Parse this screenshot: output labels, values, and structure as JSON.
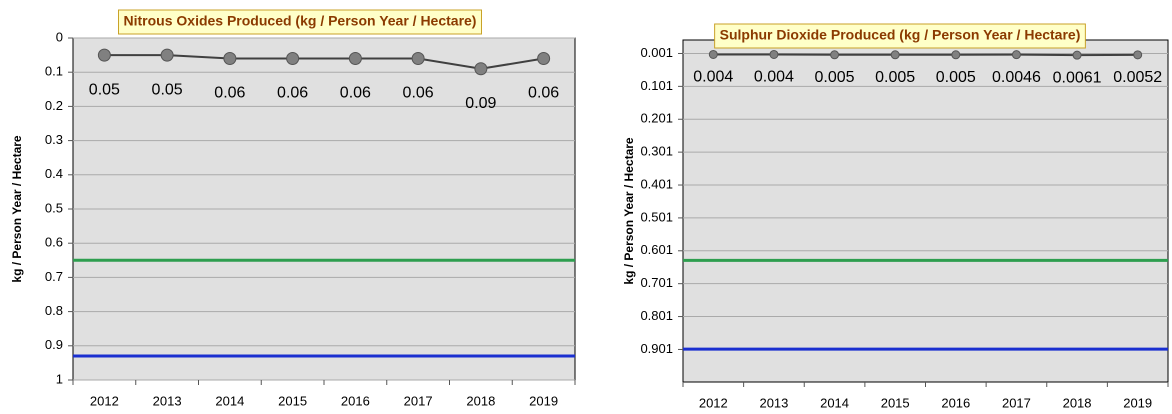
{
  "chart_data": [
    {
      "type": "line",
      "title": "Nitrous Oxides Produced (kg / Person Year / Hectare)",
      "y_label": "kg / Person Year / Hectare",
      "categories": [
        "2012",
        "2013",
        "2014",
        "2015",
        "2016",
        "2017",
        "2018",
        "2019"
      ],
      "values": [
        0.05,
        0.05,
        0.06,
        0.06,
        0.06,
        0.06,
        0.09,
        0.06
      ],
      "color": "#404040",
      "marker_color": "#808080",
      "ylim": [
        0,
        1
      ],
      "y_inverted": true,
      "yticks": [
        0,
        0.1,
        0.2,
        0.3,
        0.4,
        0.5,
        0.6,
        0.7,
        0.8,
        0.9,
        1
      ],
      "grid": true,
      "reference_lines": [
        {
          "value": 0.65,
          "color": "#2e9e4f"
        },
        {
          "value": 0.93,
          "color": "#1a2fd0"
        }
      ]
    },
    {
      "type": "line",
      "title": "Sulphur Dioxide Produced (kg / Person Year / Hectare)",
      "y_label": "kg / Person Year / Hectare",
      "categories": [
        "2012",
        "2013",
        "2014",
        "2015",
        "2016",
        "2017",
        "2018",
        "2019"
      ],
      "values": [
        0.004,
        0.004,
        0.005,
        0.005,
        0.005,
        0.0046,
        0.0061,
        0.0052
      ],
      "color": "#404040",
      "marker_color": "#808080",
      "ylim": [
        -0.04,
        1.0
      ],
      "y_inverted": true,
      "yticks": [
        0.001,
        0.101,
        0.201,
        0.301,
        0.401,
        0.501,
        0.601,
        0.701,
        0.801,
        0.901
      ],
      "grid": true,
      "reference_lines": [
        {
          "value": 0.63,
          "color": "#2e9e4f"
        },
        {
          "value": 0.9,
          "color": "#1a2fd0"
        }
      ]
    }
  ]
}
